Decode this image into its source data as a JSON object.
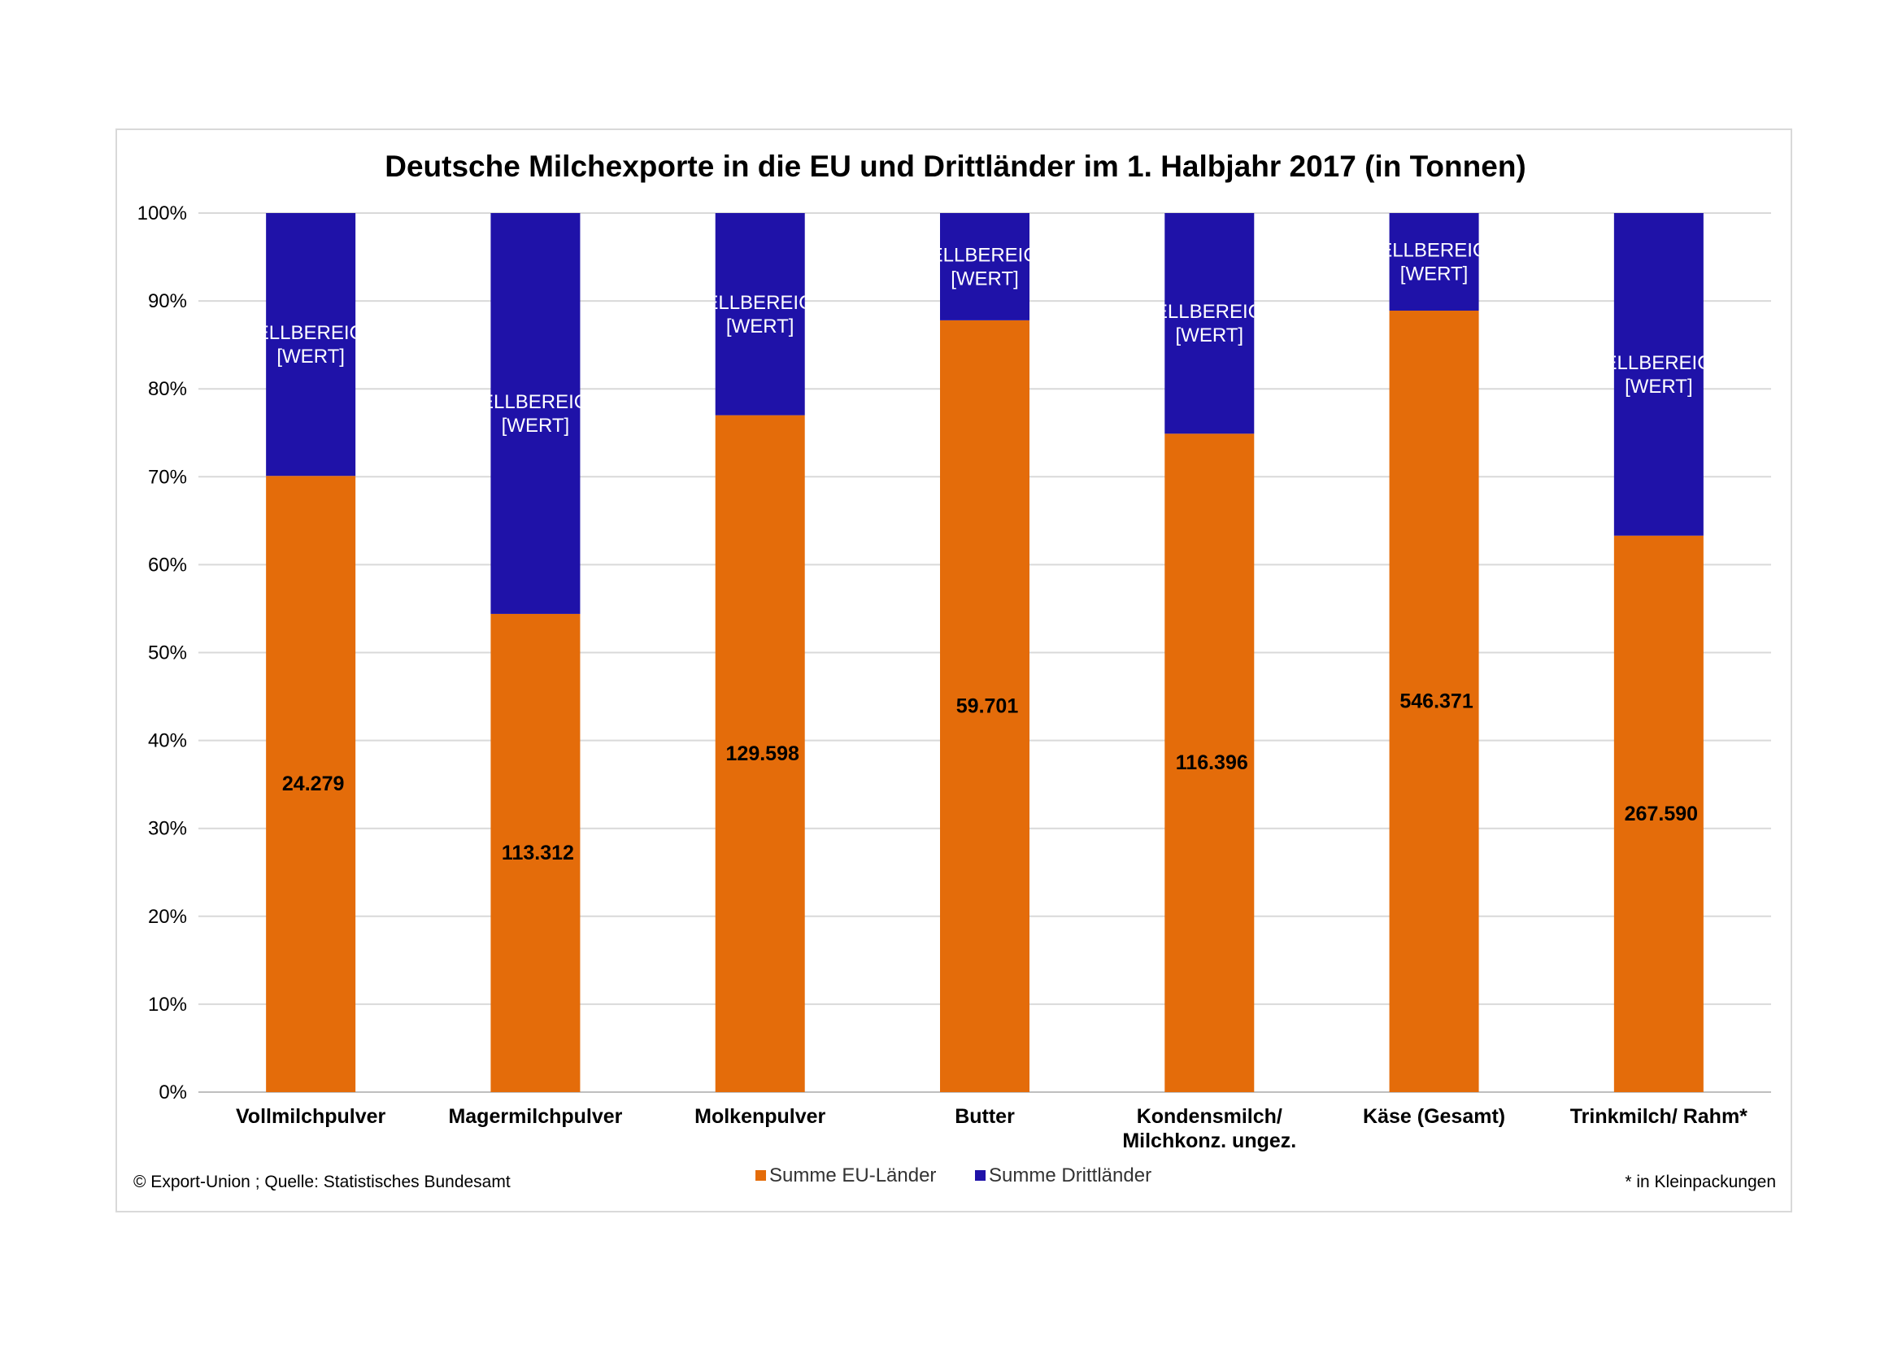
{
  "chart_data": {
    "type": "bar",
    "stacked": "percent",
    "title": "Deutsche Milchexporte in die EU und Drittländer im 1. Halbjahr 2017 (in Tonnen)",
    "y_ticks": [
      "0%",
      "10%",
      "20%",
      "30%",
      "40%",
      "50%",
      "60%",
      "70%",
      "80%",
      "90%",
      "100%"
    ],
    "ylim": [
      0,
      100
    ],
    "grid": true,
    "categories": [
      [
        "Vollmilchpulver"
      ],
      [
        "Magermilchpulver"
      ],
      [
        "Molkenpulver"
      ],
      [
        "Butter"
      ],
      [
        "Kondensmilch/",
        "Milchkonz. ungez."
      ],
      [
        "Käse (Gesamt)"
      ],
      [
        "Trinkmilch/ Rahm*"
      ]
    ],
    "series": [
      {
        "name": "Summe EU-Länder",
        "color": "#e46c0a",
        "share_percent": [
          70.1,
          54.4,
          77.0,
          87.8,
          74.9,
          88.9,
          63.3
        ],
        "labels": [
          "24.279",
          "113.312",
          "129.598",
          "59.701",
          "116.396",
          "546.371",
          "267.590"
        ]
      },
      {
        "name": "Summe Drittländer",
        "color": "#1f12a8",
        "share_percent": [
          29.9,
          45.6,
          23.0,
          12.2,
          25.1,
          11.1,
          36.7
        ],
        "labels": [
          "[ZELLBEREICH]\n[WERT]",
          "[ZELLBEREICH]\n[WERT]",
          "[ZELLBEREICH]\n[WERT]",
          "[ZELLBEREICH]\n[WERT]",
          "[ZELLBEREICH]\n[WERT]",
          "[ZELLBEREICH]\n[WERT]",
          "[ZELLBEREICH]\n[WERT]"
        ]
      }
    ],
    "legend": "bottom",
    "source_note": "© Export-Union ; Quelle: Statistisches Bundesamt",
    "footnote": "* in Kleinpackungen"
  }
}
